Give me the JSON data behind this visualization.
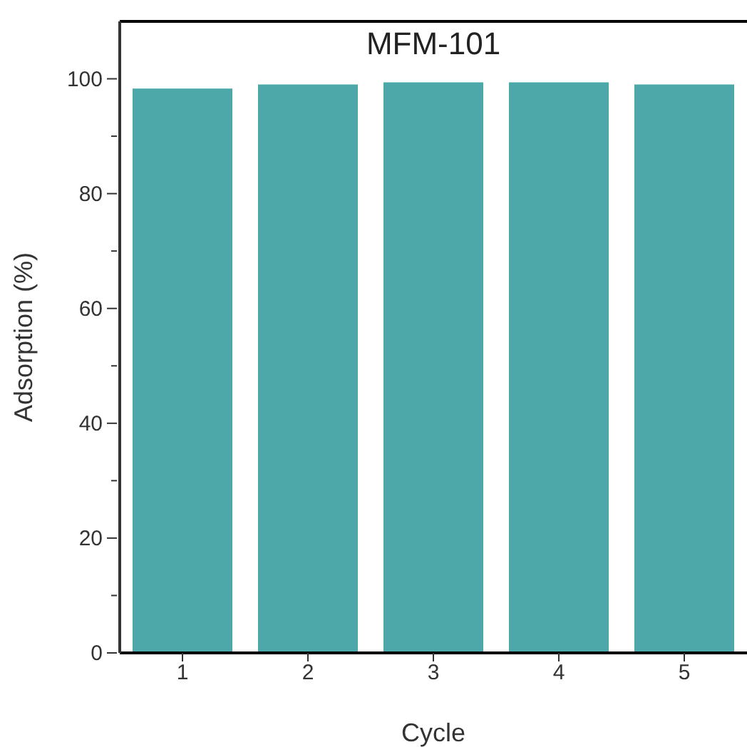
{
  "chart_data": {
    "type": "bar",
    "title": "MFM-101",
    "xlabel": "Cycle",
    "ylabel": "Adsorption (%)",
    "categories": [
      "1",
      "2",
      "3",
      "4",
      "5"
    ],
    "values": [
      98.3,
      99.0,
      99.4,
      99.4,
      99.0
    ],
    "color": "#4da9a9",
    "ylim": [
      0,
      110
    ],
    "yticks": [
      0,
      {
        "value": 10,
        "label": null
      },
      20,
      {
        "value": 30,
        "label": null
      },
      40,
      {
        "value": 50,
        "label": null
      },
      60,
      {
        "value": 70,
        "label": null
      },
      80,
      {
        "value": 90,
        "label": null
      },
      100
    ],
    "grid": false,
    "legend": false
  }
}
